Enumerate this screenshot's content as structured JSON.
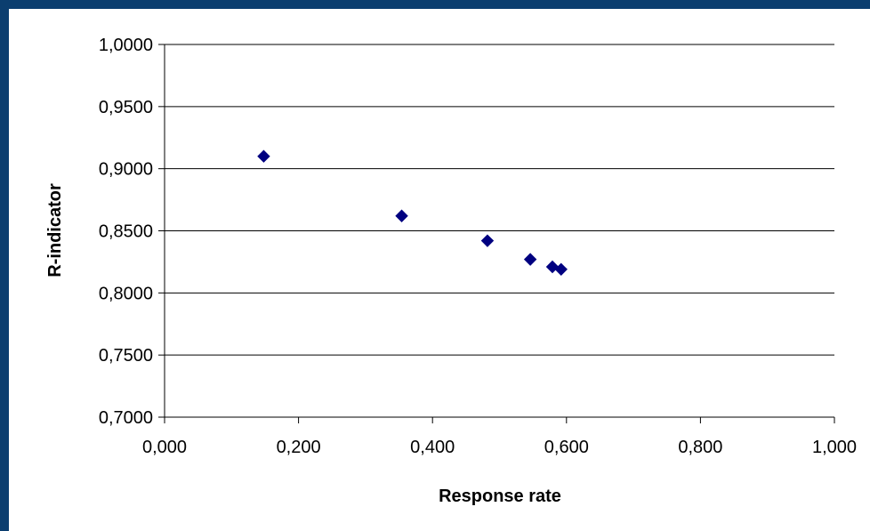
{
  "chart_data": {
    "type": "scatter",
    "title": "",
    "xlabel": "Response rate",
    "ylabel": "R-indicator",
    "xlim": [
      0,
      1
    ],
    "ylim": [
      0.7,
      1
    ],
    "x_ticks": [
      "0,000",
      "0,200",
      "0,400",
      "0,600",
      "0,800",
      "1,000"
    ],
    "y_ticks": [
      "0,7000",
      "0,7500",
      "0,8000",
      "0,8500",
      "0,9000",
      "0,9500",
      "1,0000"
    ],
    "grid": "horizontal",
    "legend": "none",
    "marker": "diamond",
    "marker_color": "#000080",
    "series": [
      {
        "points": [
          {
            "x": 0.148,
            "y": 0.91
          },
          {
            "x": 0.354,
            "y": 0.862
          },
          {
            "x": 0.482,
            "y": 0.842
          },
          {
            "x": 0.546,
            "y": 0.827
          },
          {
            "x": 0.579,
            "y": 0.821
          },
          {
            "x": 0.592,
            "y": 0.819
          }
        ]
      }
    ]
  },
  "colors": {
    "background": "#0b3e6f",
    "plot_area": "#ffffff",
    "gridline": "#000000"
  }
}
